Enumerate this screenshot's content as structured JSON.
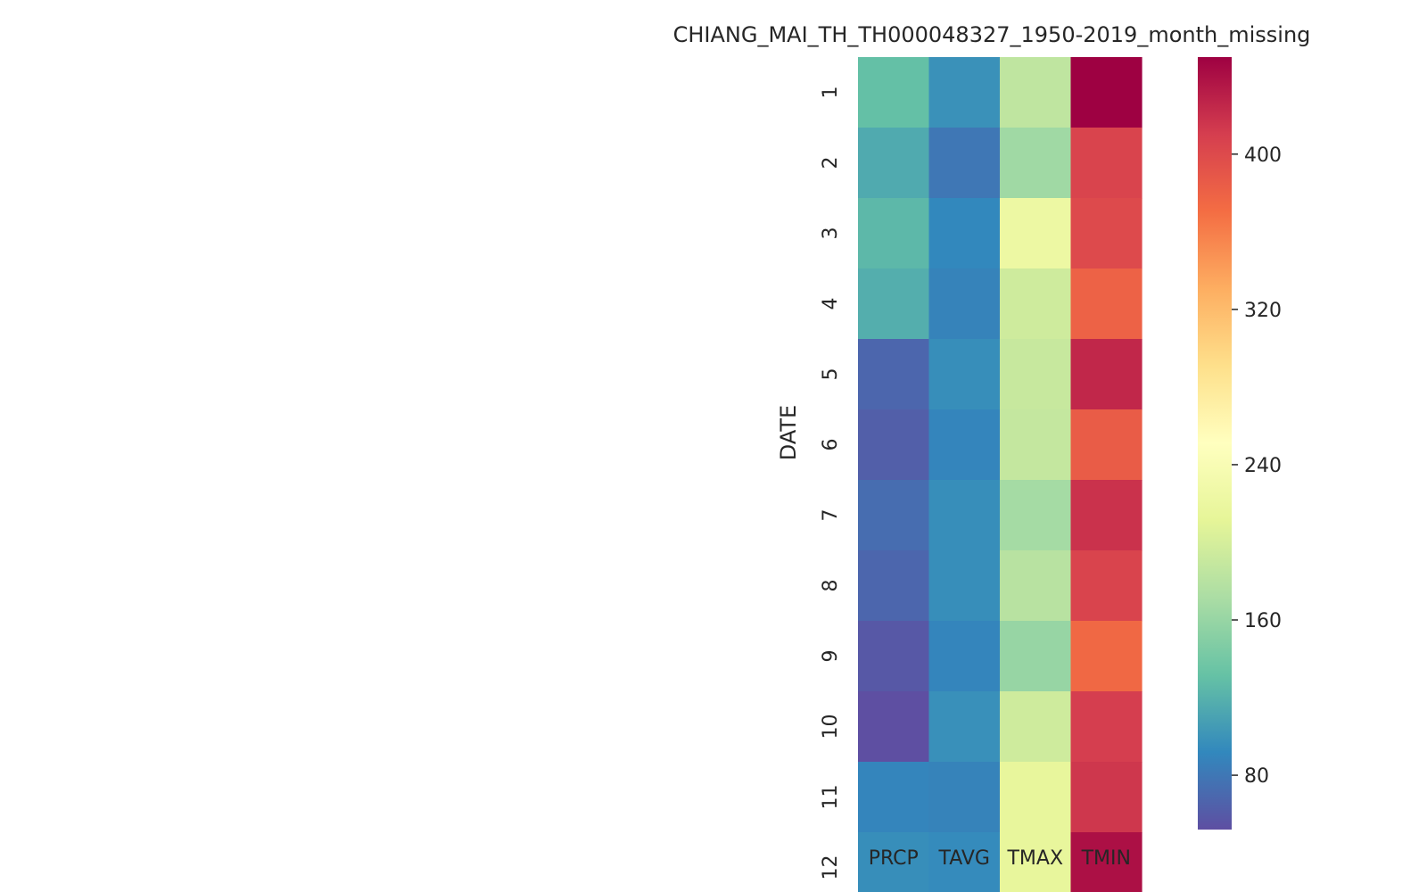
{
  "chart_data": {
    "type": "heatmap",
    "title": "CHIANG_MAI_TH_TH000048327_1950-2019_month_missing",
    "ylabel": "DATE",
    "xlabel": "",
    "x_categories": [
      "PRCP",
      "TAVG",
      "TMAX",
      "TMIN"
    ],
    "y_categories": [
      "1",
      "2",
      "3",
      "4",
      "5",
      "6",
      "7",
      "8",
      "9",
      "10",
      "11",
      "12"
    ],
    "values": [
      [
        130,
        98,
        185,
        450
      ],
      [
        115,
        80,
        165,
        405
      ],
      [
        125,
        92,
        222,
        400
      ],
      [
        118,
        88,
        195,
        380
      ],
      [
        68,
        96,
        190,
        425
      ],
      [
        63,
        90,
        188,
        385
      ],
      [
        73,
        96,
        168,
        418
      ],
      [
        68,
        96,
        180,
        405
      ],
      [
        58,
        90,
        160,
        375
      ],
      [
        52,
        97,
        195,
        410
      ],
      [
        90,
        88,
        215,
        415
      ],
      [
        96,
        94,
        215,
        440
      ]
    ],
    "colorbar": {
      "colormap": "Spectral_r",
      "vmin": 52,
      "vmax": 450,
      "ticks": [
        80,
        160,
        240,
        320,
        400
      ]
    },
    "grid": false
  }
}
